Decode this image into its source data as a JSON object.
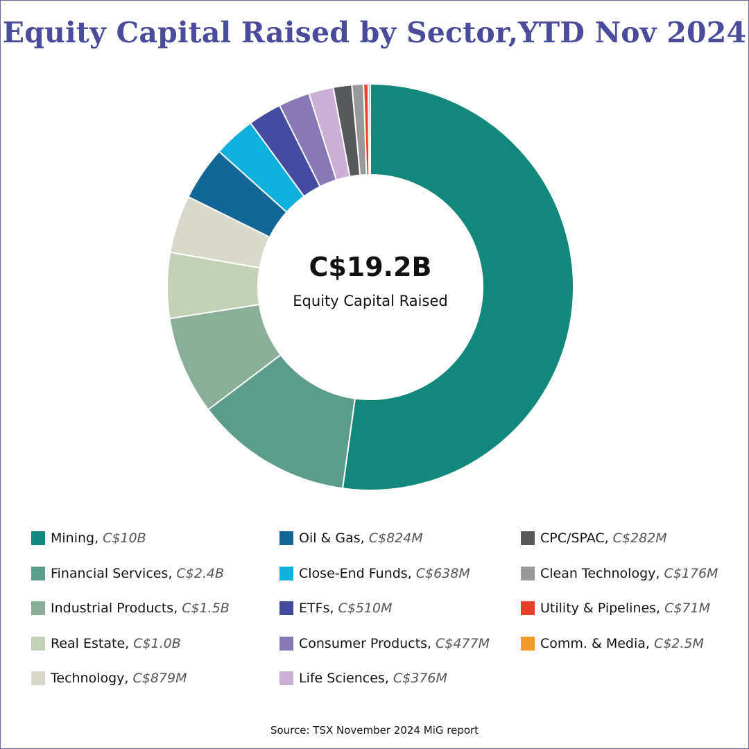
{
  "chart_data": {
    "type": "pie",
    "subtype": "donut",
    "title": "Equity Capital Raised by Sector,YTD Nov 2024",
    "center": {
      "value": "C$19.2B",
      "label": "Equity Capital Raised"
    },
    "unit": "C$ billions",
    "slices": [
      {
        "label": "Mining",
        "display": "C$10B",
        "value": 10.0,
        "color": "#12887a"
      },
      {
        "label": "Financial Services",
        "display": "C$2.4B",
        "value": 2.4,
        "color": "#5c9c8a"
      },
      {
        "label": "Industrial Products",
        "display": "C$1.5B",
        "value": 1.5,
        "color": "#8aae98"
      },
      {
        "label": "Real Estate",
        "display": "C$1.0B",
        "value": 1.0,
        "color": "#c2d1b8"
      },
      {
        "label": "Technology",
        "display": "C$879M",
        "value": 0.879,
        "color": "#d8d9cb"
      },
      {
        "label": "Oil & Gas",
        "display": "C$824M",
        "value": 0.824,
        "color": "#136696"
      },
      {
        "label": "Close-End Funds",
        "display": "C$638M",
        "value": 0.638,
        "color": "#0fb0dc"
      },
      {
        "label": "ETFs",
        "display": "C$510M",
        "value": 0.51,
        "color": "#454b9f"
      },
      {
        "label": "Consumer Products",
        "display": "C$477M",
        "value": 0.477,
        "color": "#8878b6"
      },
      {
        "label": "Life Sciences",
        "display": "C$376M",
        "value": 0.376,
        "color": "#cbb0d6"
      },
      {
        "label": "CPC/SPAC",
        "display": "C$282M",
        "value": 0.282,
        "color": "#58595b"
      },
      {
        "label": "Clean Technology",
        "display": "C$176M",
        "value": 0.176,
        "color": "#98999b"
      },
      {
        "label": "Utility & Pipelines",
        "display": "C$71M",
        "value": 0.071,
        "color": "#e8402a"
      },
      {
        "label": "Comm. & Media",
        "display": "C$2.5M",
        "value": 0.0025,
        "color": "#f39a2b"
      }
    ],
    "legend_position": "bottom"
  },
  "source": "Source: TSX November 2024 MiG report"
}
